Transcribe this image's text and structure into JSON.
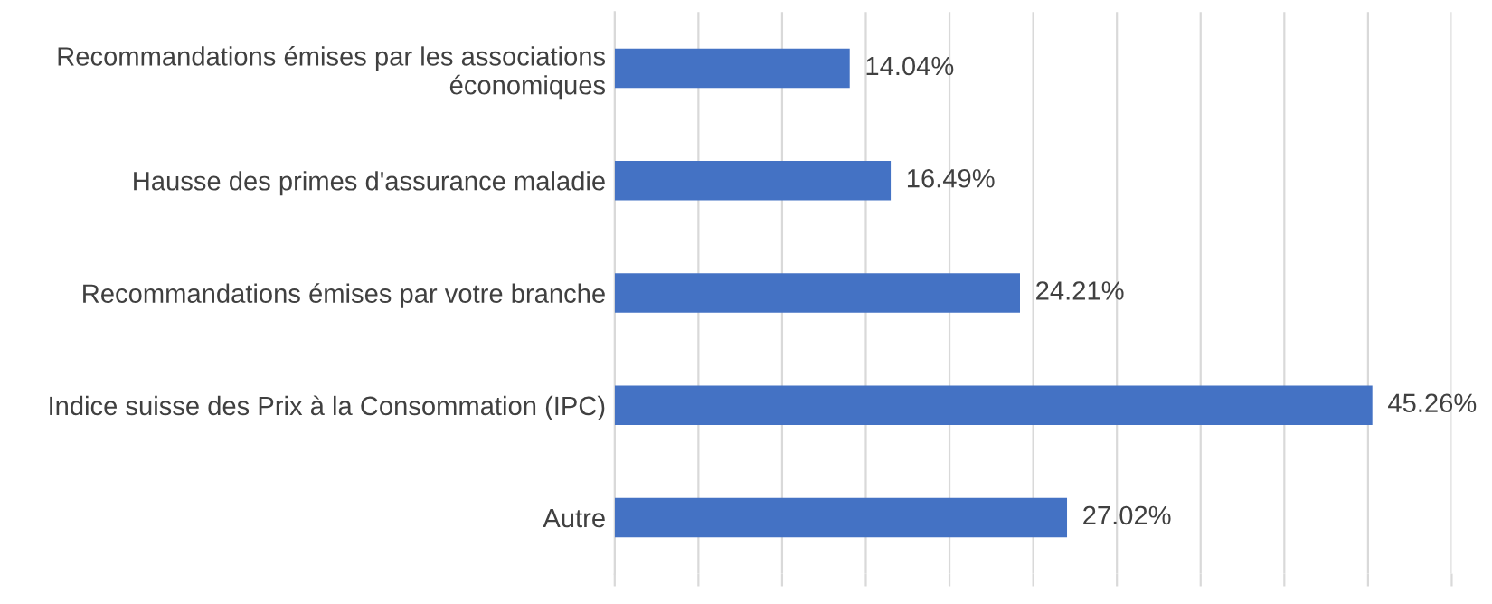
{
  "chart_data": {
    "type": "bar",
    "orientation": "horizontal",
    "categories": [
      "Recommandations émises par les associations\néconomiques",
      "Hausse des primes d'assurance maladie",
      "Recommandations émises par votre branche",
      "Indice suisse des Prix à la Consommation (IPC)",
      "Autre"
    ],
    "values": [
      14.04,
      16.49,
      24.21,
      45.26,
      27.02
    ],
    "value_labels": [
      "14.04%",
      "16.49%",
      "24.21%",
      "45.26%",
      "27.02%"
    ],
    "color": "#4472c4",
    "xlim": [
      0,
      50
    ],
    "xticks": [
      {
        "value": 0,
        "label": null
      },
      {
        "value": 5,
        "label": null
      },
      {
        "value": 10,
        "label": null
      },
      {
        "value": 15,
        "label": null
      },
      {
        "value": 20,
        "label": null
      },
      {
        "value": 25,
        "label": null
      },
      {
        "value": 30,
        "label": null
      },
      {
        "value": 35,
        "label": null
      },
      {
        "value": 40,
        "label": null
      },
      {
        "value": 45,
        "label": null
      },
      {
        "value": 50,
        "label": null
      }
    ],
    "tick_labels": "y",
    "grid": "x",
    "legend": false
  }
}
